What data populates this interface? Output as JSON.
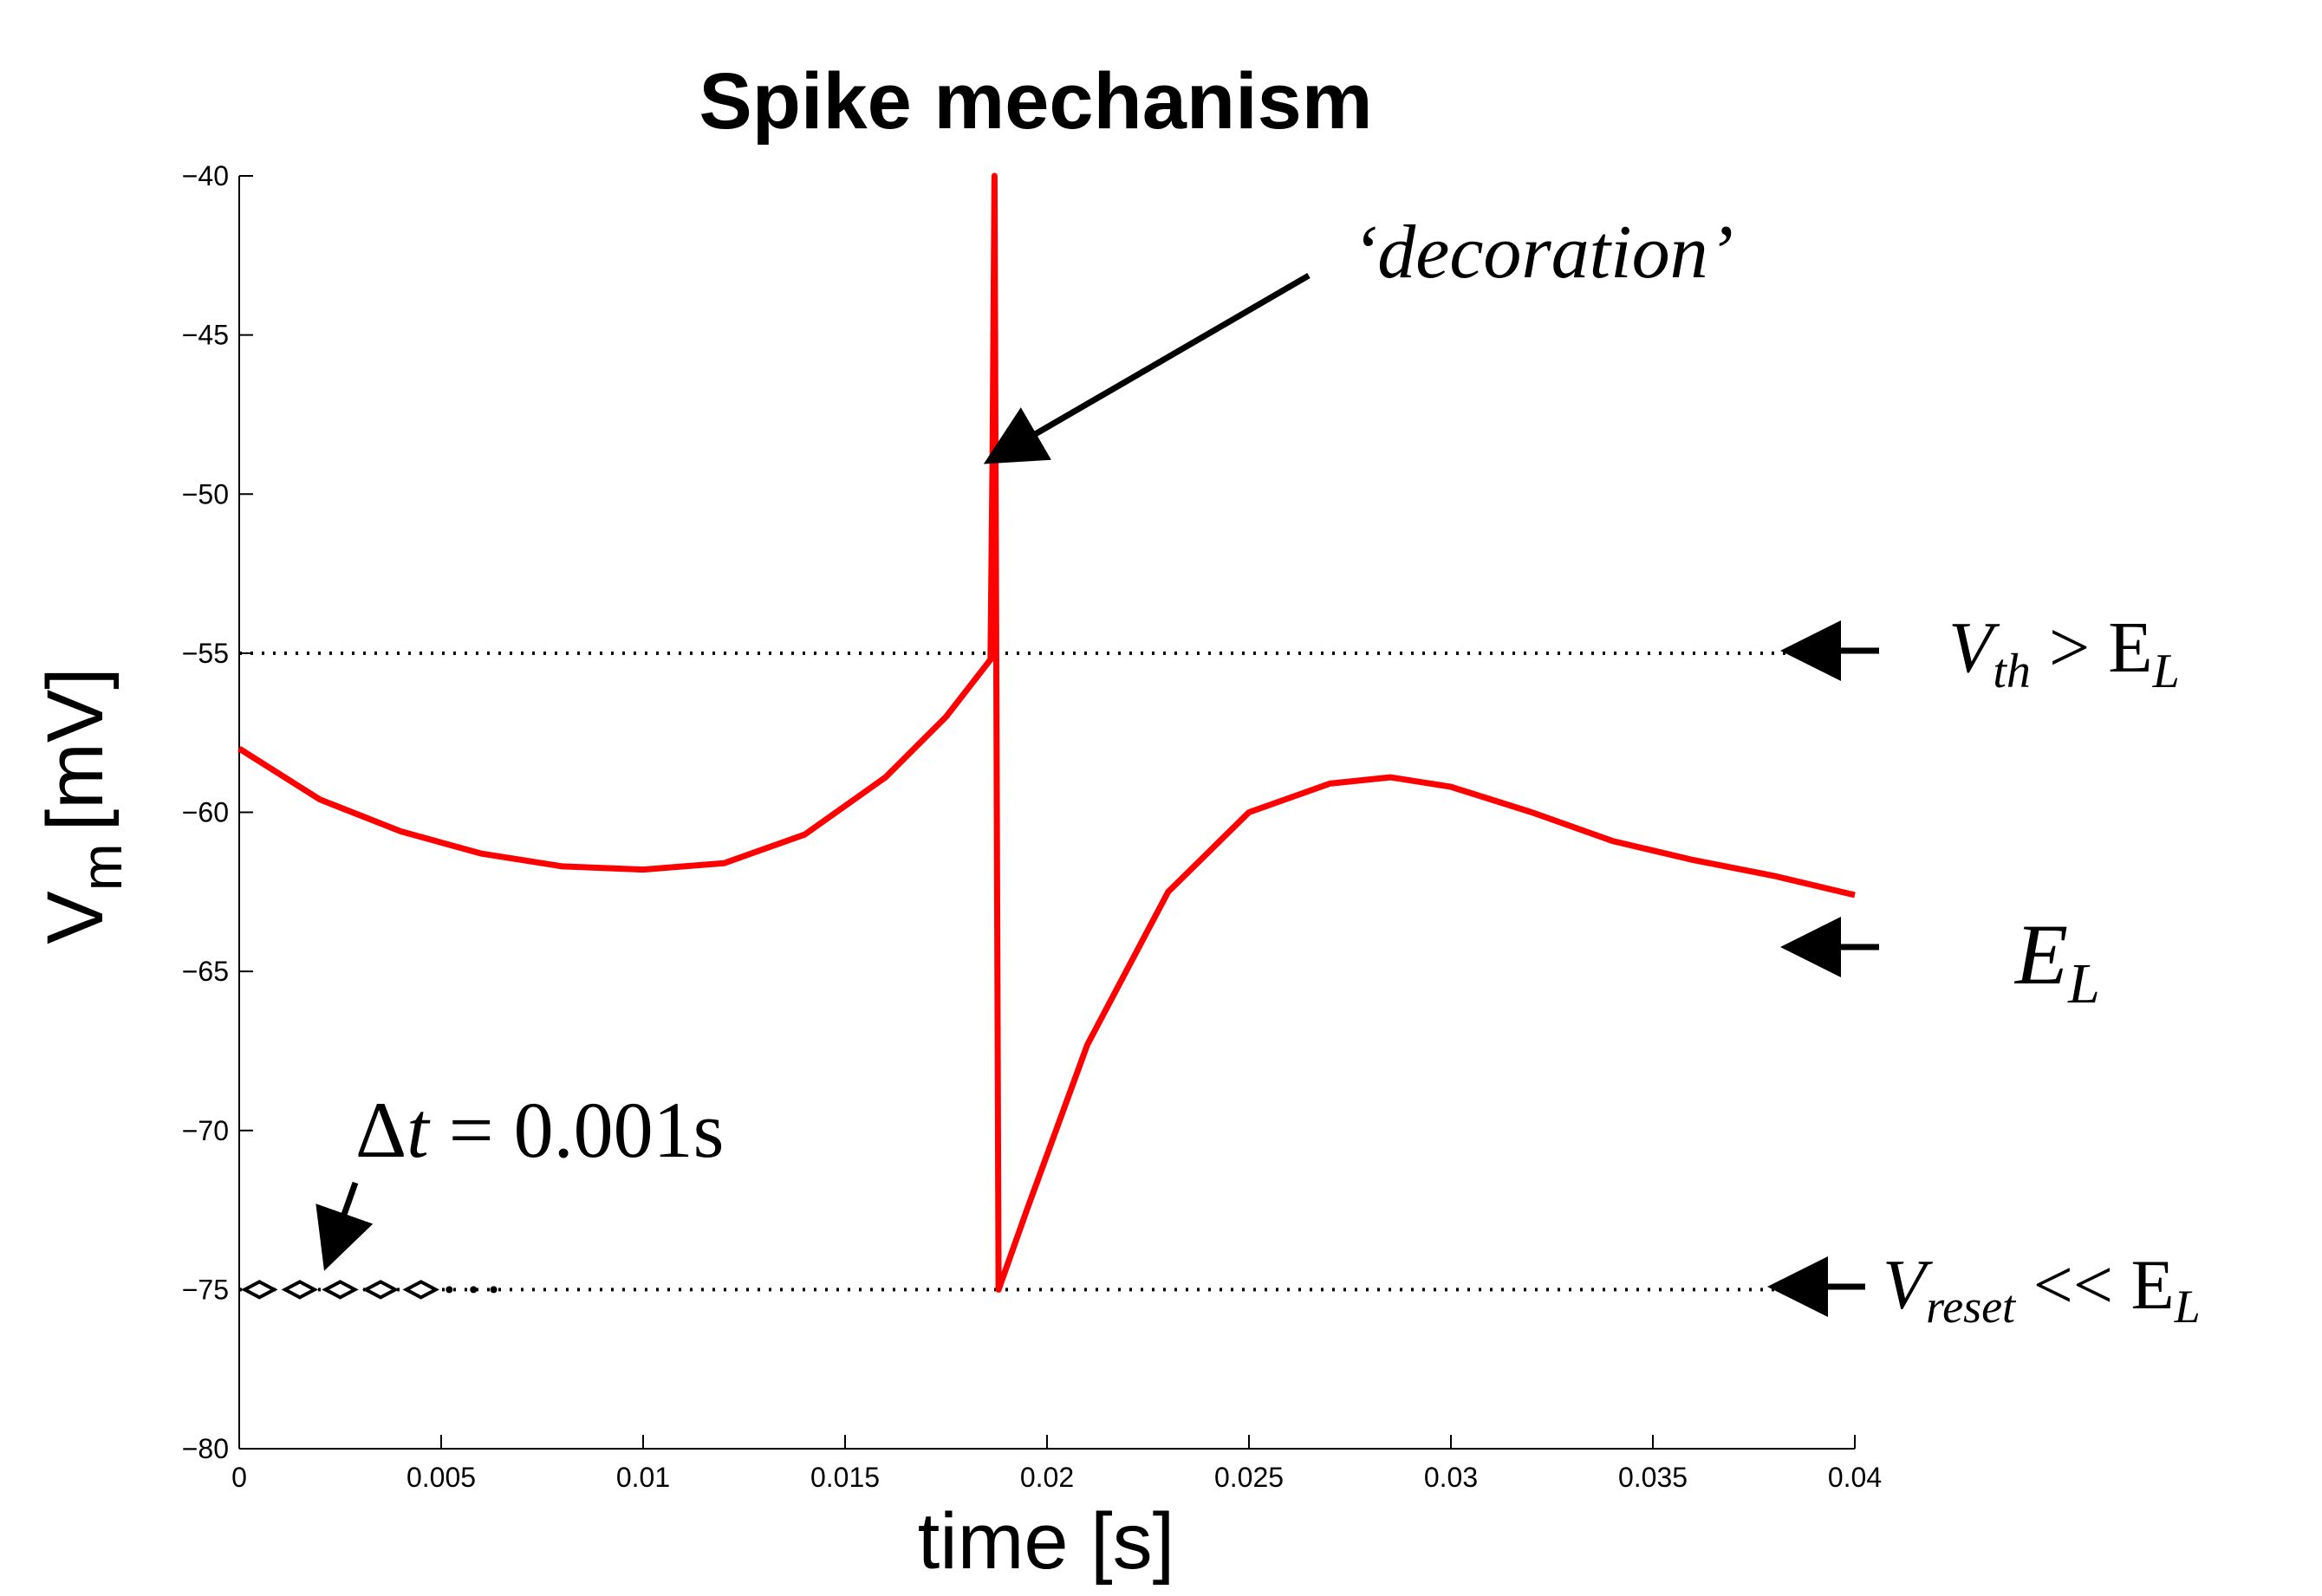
{
  "chart_data": {
    "type": "line",
    "title": "Spike mechanism",
    "xlabel": "time [s]",
    "ylabel_main": "V",
    "ylabel_sub": "m",
    "ylabel_unit": "[mV]",
    "xlim": [
      0,
      0.04
    ],
    "ylim": [
      -80,
      -40
    ],
    "xticks": [
      0,
      0.005,
      0.01,
      0.015,
      0.02,
      0.025,
      0.03,
      0.035,
      0.04
    ],
    "xtick_labels": [
      "0",
      "0.005",
      "0.01",
      "0.015",
      "0.02",
      "0.025",
      "0.03",
      "0.035",
      "0.04"
    ],
    "yticks": [
      -80,
      -75,
      -70,
      -65,
      -60,
      -55,
      -50,
      -45,
      -40
    ],
    "ytick_labels": [
      "−80",
      "−75",
      "−70",
      "−65",
      "−60",
      "−55",
      "−50",
      "−45",
      "−40"
    ],
    "grid": false,
    "series": [
      {
        "color": "#ff0000",
        "x": [
          0,
          0.002,
          0.004,
          0.006,
          0.008,
          0.01,
          0.012,
          0.014,
          0.016,
          0.0175,
          0.0186,
          0.01865,
          0.0187,
          0.0188,
          0.0195,
          0.021,
          0.023,
          0.025,
          0.027,
          0.0285,
          0.03,
          0.032,
          0.034,
          0.036,
          0.038,
          0.04
        ],
        "y": [
          -58.0,
          -59.6,
          -60.6,
          -61.3,
          -61.7,
          -61.8,
          -61.6,
          -60.7,
          -58.9,
          -57.0,
          -55.2,
          -49.0,
          -40.0,
          -75.0,
          -72.5,
          -67.3,
          -62.5,
          -60.0,
          -59.1,
          -58.9,
          -59.2,
          -60.0,
          -60.9,
          -61.5,
          -62.0,
          -62.6
        ]
      }
    ],
    "reference_lines": [
      {
        "y": -55,
        "x0": 0,
        "x1": 0.0388
      },
      {
        "y": -75,
        "x0": 0,
        "x1": 0.0384
      }
    ],
    "markers": {
      "x": [
        0.0005,
        0.0015,
        0.0025,
        0.0035,
        0.0045
      ],
      "y": -75,
      "dots_x": [
        0.0052,
        0.0058,
        0.0063
      ]
    },
    "annotations": {
      "decoration": "‘decoration’",
      "dt_delta": "Δ",
      "dt_t": "t",
      "dt_rest": " = 0.001s",
      "vth_main": "V",
      "vth_sub": "th",
      "vth_rest": " > E",
      "vth_sub2": "L",
      "el_main": "E",
      "el_sub": "L",
      "vreset_main": "V",
      "vreset_sub": "reset",
      "vreset_rest": " << E",
      "vreset_sub2": "L"
    }
  }
}
